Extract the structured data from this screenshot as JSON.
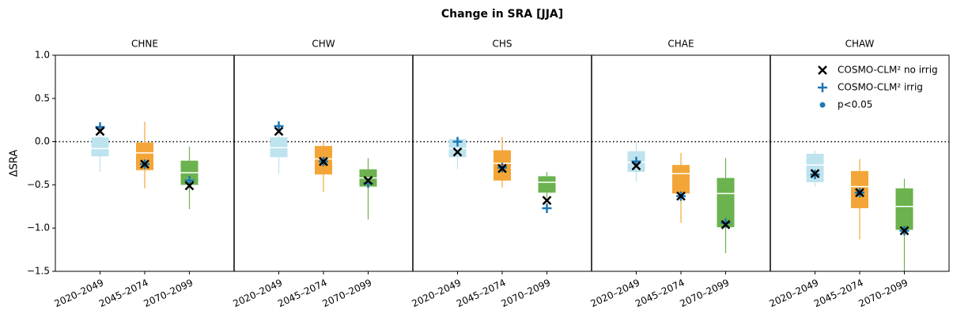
{
  "chart_data": {
    "type": "box",
    "title": "Change in SRA [JJA]",
    "ylabel": "ΔSRA",
    "ylim": [
      -1.5,
      1.0
    ],
    "yticks": [
      {
        "value": 1.0,
        "label": "1.0"
      },
      {
        "value": 0.5,
        "label": "0.5"
      },
      {
        "value": 0.0,
        "label": "0.0"
      },
      {
        "value": -0.5,
        "label": "−0.5"
      },
      {
        "value": -1.0,
        "label": "−1.0"
      },
      {
        "value": -1.5,
        "label": "−1.5"
      }
    ],
    "hline": 0,
    "categories": [
      "2020–2049",
      "2045–2074",
      "2070–2099"
    ],
    "box_colors": [
      "#bde3ee",
      "#f3a637",
      "#6cb24e"
    ],
    "legend_position": "upper right",
    "series": [
      {
        "name": "COSMO-CLM² no irrig",
        "color": "#000000",
        "marker": "x",
        "values": [
          [
            0.12,
            -0.26,
            -0.51
          ],
          [
            0.12,
            -0.23,
            -0.45
          ],
          [
            -0.12,
            -0.31,
            -0.68
          ],
          [
            -0.28,
            -0.63,
            -0.96
          ],
          [
            -0.37,
            -0.59,
            -1.03
          ]
        ]
      },
      {
        "name": "COSMO-CLM² irrig",
        "color": "#1f77b4",
        "marker": "+",
        "values": [
          [
            0.17,
            -0.26,
            -0.45
          ],
          [
            0.18,
            -0.23,
            -0.48
          ],
          [
            0.0,
            -0.3,
            -0.77
          ],
          [
            -0.23,
            -0.63,
            -0.94
          ],
          [
            -0.38,
            -0.59,
            -1.03
          ]
        ]
      },
      {
        "name": "p<0.05",
        "color": "#1f77b4",
        "marker": "o"
      }
    ],
    "panels": [
      {
        "title": "CHNE",
        "boxes": [
          {
            "whislo": -0.35,
            "q1": -0.17,
            "med": -0.08,
            "q3": 0.05,
            "whishi": 0.2
          },
          {
            "whislo": -0.54,
            "q1": -0.33,
            "med": -0.13,
            "q3": -0.01,
            "whishi": 0.23
          },
          {
            "whislo": -0.78,
            "q1": -0.5,
            "med": -0.36,
            "q3": -0.22,
            "whishi": -0.06
          }
        ]
      },
      {
        "title": "CHW",
        "boxes": [
          {
            "whislo": -0.37,
            "q1": -0.18,
            "med": -0.07,
            "q3": 0.05,
            "whishi": 0.18
          },
          {
            "whislo": -0.58,
            "q1": -0.38,
            "med": -0.2,
            "q3": -0.05,
            "whishi": 0.0
          },
          {
            "whislo": -0.9,
            "q1": -0.52,
            "med": -0.42,
            "q3": -0.32,
            "whishi": -0.19
          }
        ]
      },
      {
        "title": "CHS",
        "boxes": [
          {
            "whislo": -0.32,
            "q1": -0.18,
            "med": -0.08,
            "q3": 0.03,
            "whishi": 0.04
          },
          {
            "whislo": -0.53,
            "q1": -0.45,
            "med": -0.25,
            "q3": -0.1,
            "whishi": 0.05
          },
          {
            "whislo": -0.65,
            "q1": -0.59,
            "med": -0.47,
            "q3": -0.4,
            "whishi": -0.35
          }
        ]
      },
      {
        "title": "CHAE",
        "boxes": [
          {
            "whislo": -0.46,
            "q1": -0.35,
            "med": -0.24,
            "q3": -0.11,
            "whishi": 0.0
          },
          {
            "whislo": -0.94,
            "q1": -0.6,
            "med": -0.37,
            "q3": -0.27,
            "whishi": -0.13
          },
          {
            "whislo": -1.29,
            "q1": -0.99,
            "med": -0.6,
            "q3": -0.42,
            "whishi": -0.19
          }
        ]
      },
      {
        "title": "CHAW",
        "boxes": [
          {
            "whislo": -0.52,
            "q1": -0.47,
            "med": -0.27,
            "q3": -0.14,
            "whishi": -0.1
          },
          {
            "whislo": -1.13,
            "q1": -0.77,
            "med": -0.52,
            "q3": -0.34,
            "whishi": -0.2
          },
          {
            "whislo": -1.5,
            "q1": -1.02,
            "med": -0.75,
            "q3": -0.54,
            "whishi": -0.43
          }
        ]
      }
    ]
  }
}
